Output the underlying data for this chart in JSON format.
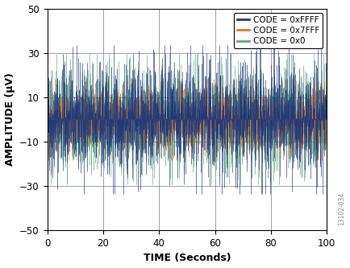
{
  "xlabel": "TIME (Seconds)",
  "ylabel": "AMPLITUDE (μV)",
  "xlim": [
    0,
    100
  ],
  "ylim": [
    -50,
    50
  ],
  "xticks": [
    0,
    20,
    40,
    60,
    80,
    100
  ],
  "yticks": [
    -50,
    -30,
    -10,
    10,
    30,
    50
  ],
  "grid_color": "#888888",
  "bg_color": "#ffffff",
  "series": [
    {
      "label": "CODE = 0xFFFF",
      "color": "#1a3a7c",
      "std": 12.0,
      "seed": 42,
      "draw_order": 3
    },
    {
      "label": "CODE = 0x7FFF",
      "color": "#e8732a",
      "std": 6.5,
      "seed": 99,
      "draw_order": 2
    },
    {
      "label": "CODE = 0x0",
      "color": "#5aaa78",
      "std": 10.5,
      "seed": 77,
      "draw_order": 1
    }
  ],
  "n_points": 2000,
  "watermark": "13102-034",
  "legend_fontsize": 7.5,
  "axis_label_fontsize": 9,
  "tick_fontsize": 8.5
}
